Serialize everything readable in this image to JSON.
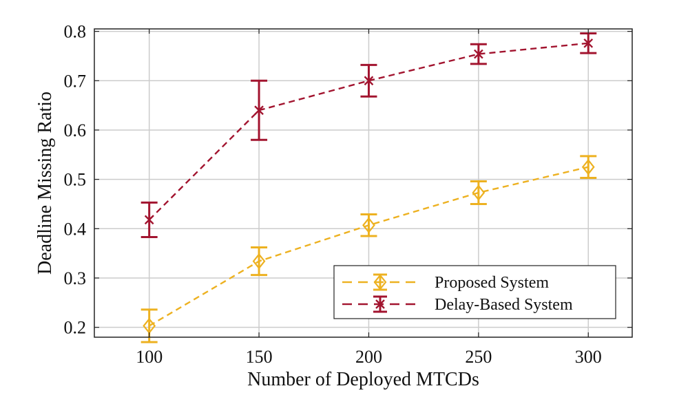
{
  "chart_data": {
    "type": "line",
    "title": "",
    "xlabel": "Number of Deployed MTCDs",
    "ylabel": "Deadline Missing Ratio",
    "x": [
      100,
      150,
      200,
      250,
      300
    ],
    "xticks": [
      "100",
      "150",
      "200",
      "250",
      "300"
    ],
    "yticks": [
      "0.2",
      "0.3",
      "0.4",
      "0.5",
      "0.6",
      "0.7",
      "0.8"
    ],
    "xlim": [
      75,
      320
    ],
    "ylim": [
      0.18,
      0.805
    ],
    "grid": true,
    "legend_position": "lower-right",
    "series": [
      {
        "name": "Proposed System",
        "color": "#EDB120",
        "marker": "diamond",
        "line_style": "dashed",
        "values": [
          0.203,
          0.334,
          0.407,
          0.473,
          0.525
        ],
        "error": [
          0.033,
          0.028,
          0.022,
          0.023,
          0.022
        ]
      },
      {
        "name": "Delay-Based System",
        "color": "#A2142F",
        "marker": "x",
        "line_style": "dashed",
        "values": [
          0.418,
          0.64,
          0.7,
          0.754,
          0.776
        ],
        "error": [
          0.035,
          0.06,
          0.032,
          0.02,
          0.02
        ]
      }
    ]
  }
}
